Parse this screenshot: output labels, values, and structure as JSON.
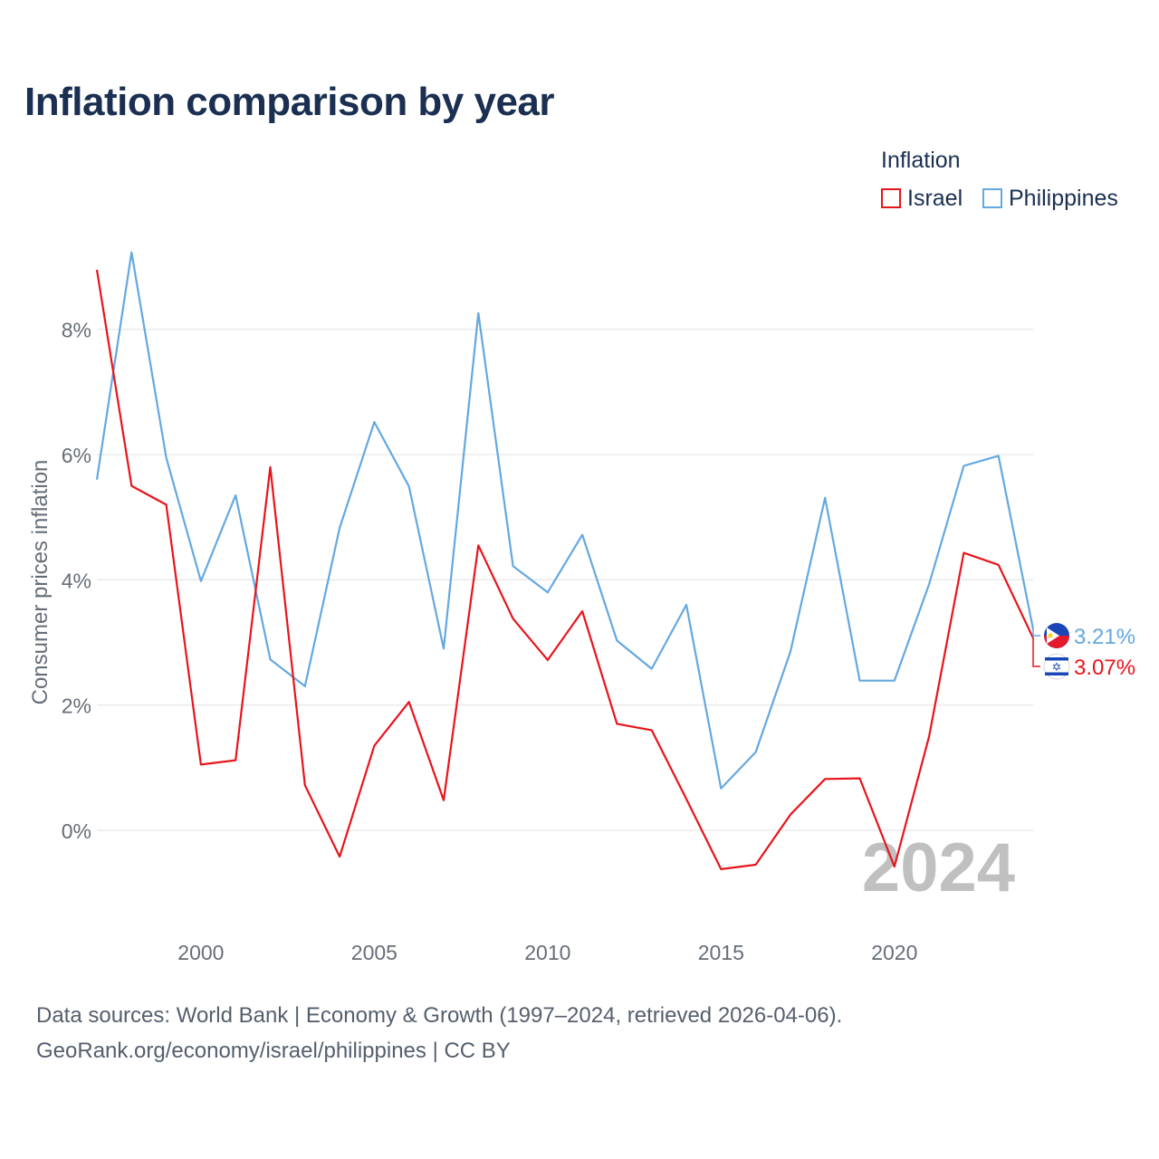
{
  "title": "Inflation comparison by year",
  "legend": {
    "title": "Inflation",
    "items": [
      {
        "label": "Israel",
        "color": "#e8141b"
      },
      {
        "label": "Philippines",
        "color": "#64a8e0"
      }
    ]
  },
  "year_watermark": "2024",
  "sources": {
    "line1": "Data sources: World Bank | Economy & Growth (1997–2024, retrieved 2026-04-06).",
    "line2": "GeoRank.org/economy/israel/philippines | CC BY"
  },
  "chart_data": {
    "type": "line",
    "title": "Inflation comparison by year",
    "xlabel": "",
    "ylabel": "Consumer prices inflation",
    "xlim": [
      1997,
      2024
    ],
    "ylim": [
      -1.2,
      9.5
    ],
    "x_ticks": [
      2000,
      2005,
      2010,
      2015,
      2020
    ],
    "y_ticks": [
      0,
      2,
      4,
      6,
      8
    ],
    "y_tick_labels": [
      "0%",
      "2%",
      "4%",
      "6%",
      "8%"
    ],
    "grid": true,
    "legend_position": "top-right",
    "x": [
      1997,
      1998,
      1999,
      2000,
      2001,
      2002,
      2003,
      2004,
      2005,
      2006,
      2007,
      2008,
      2009,
      2010,
      2011,
      2012,
      2013,
      2014,
      2015,
      2016,
      2017,
      2018,
      2019,
      2020,
      2021,
      2022,
      2023,
      2024
    ],
    "series": [
      {
        "name": "Israel",
        "color": "#e8141b",
        "end_label": "3.07%",
        "values": [
          8.95,
          5.5,
          5.2,
          1.05,
          1.12,
          5.8,
          0.72,
          -0.42,
          1.35,
          2.05,
          0.48,
          4.55,
          3.38,
          2.72,
          3.5,
          1.7,
          1.6,
          0.5,
          -0.62,
          -0.55,
          0.25,
          0.82,
          0.83,
          -0.58,
          1.5,
          4.43,
          4.24,
          3.07
        ]
      },
      {
        "name": "Philippines",
        "color": "#64a8e0",
        "end_label": "3.21%",
        "values": [
          5.6,
          9.23,
          5.95,
          3.98,
          5.35,
          2.73,
          2.3,
          4.83,
          6.52,
          5.49,
          2.9,
          8.26,
          4.22,
          3.8,
          4.72,
          3.03,
          2.58,
          3.6,
          0.67,
          1.25,
          2.85,
          5.31,
          2.39,
          2.39,
          3.93,
          5.82,
          5.98,
          3.21
        ]
      }
    ]
  }
}
